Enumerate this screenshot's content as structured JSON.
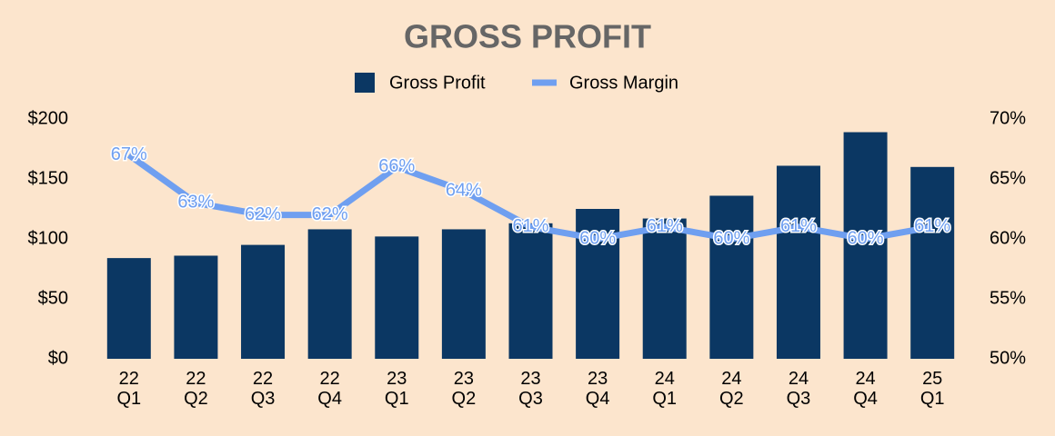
{
  "chart_data": {
    "type": "bar-line",
    "title": "GROSS PROFIT",
    "categories": [
      "22 Q1",
      "22 Q2",
      "22 Q3",
      "22 Q4",
      "23 Q1",
      "23 Q2",
      "23 Q3",
      "23 Q4",
      "24 Q1",
      "24 Q2",
      "24 Q3",
      "24 Q4",
      "25 Q1"
    ],
    "series": [
      {
        "name": "Gross Profit",
        "type": "bar",
        "color": "#0b3763",
        "values": [
          84,
          86,
          95,
          108,
          102,
          108,
          113,
          125,
          117,
          136,
          161,
          189,
          160
        ]
      },
      {
        "name": "Gross Margin",
        "type": "line",
        "axis": "y2",
        "color": "#6f9ff0",
        "values": [
          67,
          63,
          62,
          62,
          66,
          64,
          61,
          60,
          61,
          60,
          61,
          60,
          61
        ],
        "value_labels": [
          "67%",
          "63%",
          "62%",
          "62%",
          "66%",
          "64%",
          "61%",
          "60%",
          "61%",
          "60%",
          "61%",
          "60%",
          "61%"
        ]
      }
    ],
    "ylim": [
      0,
      200
    ],
    "yticks": [
      {
        "value": 0,
        "label": "$0"
      },
      {
        "value": 50,
        "label": "$50"
      },
      {
        "value": 100,
        "label": "$100"
      },
      {
        "value": 150,
        "label": "$150"
      },
      {
        "value": 200,
        "label": "$200"
      }
    ],
    "y2lim": [
      50,
      70
    ],
    "y2ticks": [
      {
        "value": 50,
        "label": "50%"
      },
      {
        "value": 55,
        "label": "55%"
      },
      {
        "value": 60,
        "label": "60%"
      },
      {
        "value": 65,
        "label": "65%"
      },
      {
        "value": 70,
        "label": "70%"
      }
    ],
    "legend": "top"
  }
}
